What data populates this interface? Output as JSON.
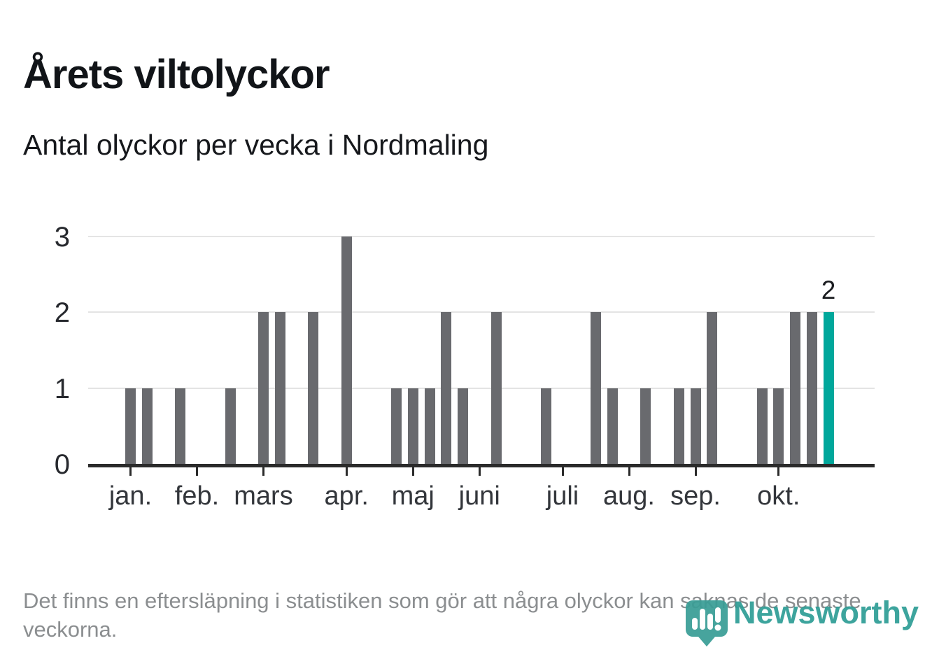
{
  "header": {
    "title": "Årets viltolyckor",
    "subtitle": "Antal olyckor per vecka i Nordmaling"
  },
  "chart_data": {
    "type": "bar",
    "title": "Årets viltolyckor",
    "subtitle": "Antal olyckor per vecka i Nordmaling",
    "values": [
      1,
      1,
      0,
      1,
      0,
      0,
      1,
      0,
      2,
      2,
      0,
      2,
      0,
      3,
      0,
      0,
      1,
      1,
      1,
      2,
      1,
      0,
      2,
      0,
      0,
      1,
      0,
      0,
      2,
      1,
      0,
      1,
      0,
      1,
      1,
      2,
      0,
      0,
      1,
      1,
      2,
      2,
      2
    ],
    "highlight_index": 42,
    "highlight_value_label": "2",
    "month_ticks": [
      {
        "slot": 0,
        "label": "jan."
      },
      {
        "slot": 4,
        "label": "feb."
      },
      {
        "slot": 8,
        "label": "mars"
      },
      {
        "slot": 13,
        "label": "apr."
      },
      {
        "slot": 17,
        "label": "maj"
      },
      {
        "slot": 21,
        "label": "juni"
      },
      {
        "slot": 26,
        "label": "juli"
      },
      {
        "slot": 30,
        "label": "aug."
      },
      {
        "slot": 34,
        "label": "sep."
      },
      {
        "slot": 39,
        "label": "okt."
      }
    ],
    "y_ticks": [
      "0",
      "1",
      "2",
      "3"
    ],
    "ylim": [
      0,
      3
    ],
    "grid": true,
    "legend": null,
    "bar_color": "#696a6e",
    "highlight_color": "#00a79b",
    "axis_color": "#2b2b2b",
    "grid_color": "#e4e4e4"
  },
  "footer": {
    "note": "Det finns en eftersläpning i statistiken som gör att några olyckor kan saknas de senaste veckorna."
  },
  "logo": {
    "brand": "Newsworthy",
    "color": "#2f9e96",
    "icon": "newsworthy-pin-icon"
  }
}
